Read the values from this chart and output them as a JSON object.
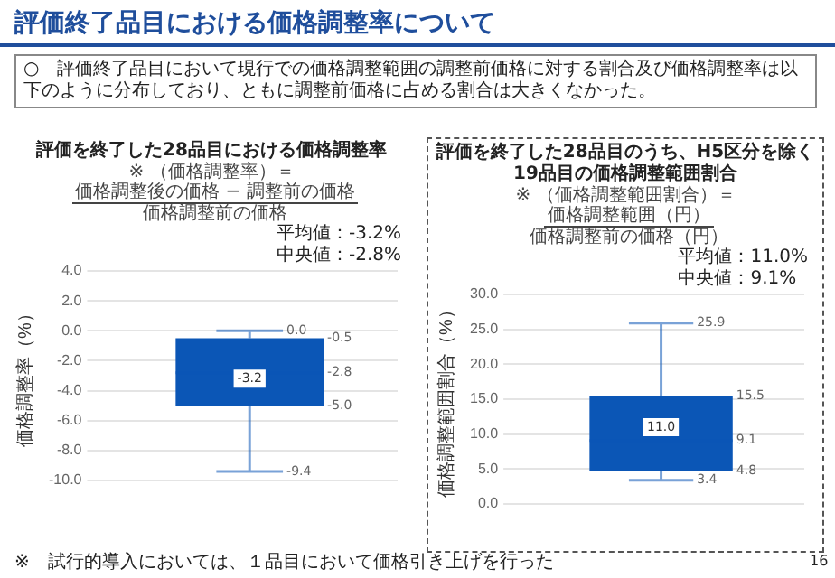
{
  "chart_data": [
    {
      "type": "box",
      "title": "評価を終了した28品目における価格調整率",
      "ylabel": "価格調整率（%）",
      "categories": [
        null
      ],
      "series": [
        {
          "color": "#0b56b6",
          "boxes": [
            {
              "low": -9.4,
              "q1": -5.0,
              "median": -2.8,
              "q3": -0.5,
              "high": 0.0,
              "mean": -3.2
            }
          ]
        }
      ],
      "ylim": [
        -10,
        4
      ],
      "yticks": [
        {
          "value": -10,
          "label": "-10.0"
        },
        {
          "value": -8,
          "label": "-8.0"
        },
        {
          "value": -6,
          "label": "-6.0"
        },
        {
          "value": -4,
          "label": "-4.0"
        },
        {
          "value": -2,
          "label": "-2.0"
        },
        {
          "value": 0,
          "label": "0.0"
        },
        {
          "value": 2,
          "label": "2.0"
        },
        {
          "value": 4,
          "label": "4.0"
        }
      ],
      "grid": "y",
      "tick_labels": "y",
      "legend": false,
      "annotations": [
        "※ （価格調整率）＝",
        "価格調整後の価格 − 調整前の価格",
        "価格調整前の価格",
        "平均値：-3.2%",
        "中央値：-2.8%",
        "評価終了品目における価格調整率について",
        "○　評価終了品目において現行での価格調整範囲の調整前価格に対する割合及び価格調整率は以下のように分布しており、ともに調整前価格に占める割合は大きくなかった。",
        "※　試行的導入においては、１品目において価格引き上げを行った",
        "0.0",
        "-0.5",
        "-2.8",
        "-3.2",
        "-5.0",
        "-9.4"
      ]
    },
    {
      "type": "box",
      "title": "評価を終了した28品目のうち、H5区分を除く19品目の価格調整範囲割合",
      "ylabel": "価格調整範囲割合（%）",
      "categories": [
        null
      ],
      "series": [
        {
          "color": "#0b56b6",
          "boxes": [
            {
              "low": 3.4,
              "q1": 4.8,
              "median": 9.1,
              "q3": 15.5,
              "high": 25.9,
              "mean": 11.0
            }
          ]
        }
      ],
      "ylim": [
        0,
        30
      ],
      "yticks": [
        {
          "value": 0,
          "label": "0.0"
        },
        {
          "value": 5,
          "label": "5.0"
        },
        {
          "value": 10,
          "label": "10.0"
        },
        {
          "value": 15,
          "label": "15.0"
        },
        {
          "value": 20,
          "label": "20.0"
        },
        {
          "value": 25,
          "label": "25.0"
        },
        {
          "value": 30,
          "label": "30.0"
        }
      ],
      "grid": "y",
      "tick_labels": "y",
      "legend": false,
      "annotations": [
        "※ （価格調整範囲割合）＝",
        "価格調整範囲（円）",
        "価格調整前の価格（円）",
        "平均値：11.0%",
        "中央値：9.1%",
        "16",
        "25.9",
        "15.5",
        "9.1",
        "11.0",
        "4.8",
        "3.4"
      ]
    }
  ]
}
